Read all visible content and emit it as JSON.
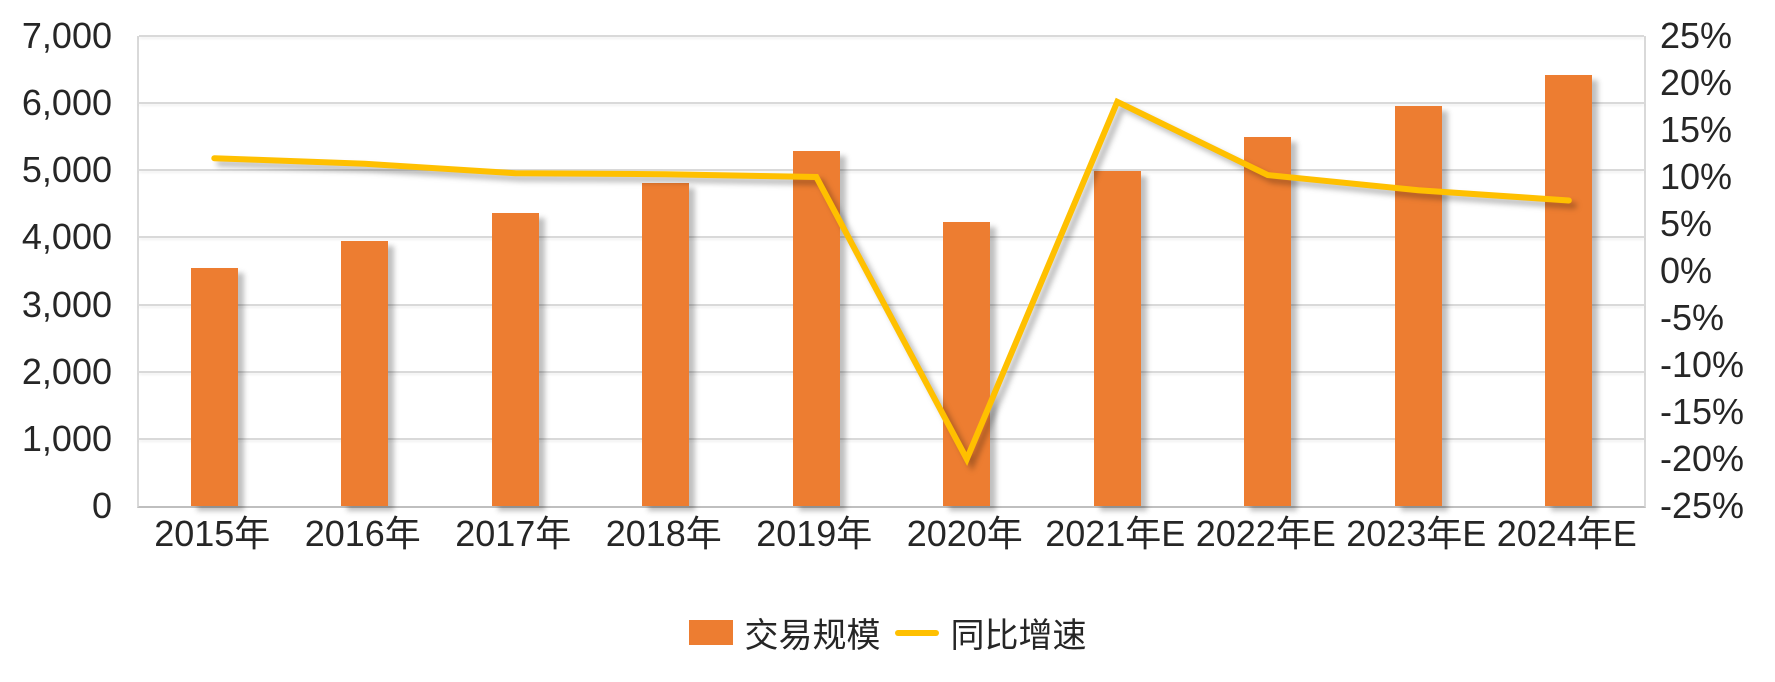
{
  "chart_data": {
    "type": "bar",
    "subtype": "combo-bar-line",
    "categories": [
      "2015年",
      "2016年",
      "2017年",
      "2018年",
      "2019年",
      "2020年",
      "2021年E",
      "2022年E",
      "2023年E",
      "2024年E"
    ],
    "series": [
      {
        "name": "交易规模",
        "type": "bar",
        "axis": "left",
        "color": "#ED7D31",
        "values": [
          3545,
          3950,
          4360,
          4810,
          5290,
          4230,
          4990,
          5500,
          5965,
          6425
        ]
      },
      {
        "name": "同比增速",
        "type": "line",
        "axis": "right",
        "color": "#FFC000",
        "values_percent": [
          12.0,
          11.4,
          10.4,
          10.3,
          10.0,
          -20.0,
          18.0,
          10.2,
          8.6,
          7.5
        ]
      }
    ],
    "left_axis": {
      "min": 0,
      "max": 7000,
      "step": 1000,
      "tick_labels": [
        "0",
        "1,000",
        "2,000",
        "3,000",
        "4,000",
        "5,000",
        "6,000",
        "7,000"
      ]
    },
    "right_axis": {
      "min": -25,
      "max": 25,
      "step": 5,
      "tick_labels_top_down": [
        "25%",
        "20%",
        "15%",
        "10%",
        "5%",
        "0%",
        "-5%",
        "-10%",
        "-15%",
        "-20%",
        "-25%"
      ]
    },
    "grid": true,
    "legend_position": "bottom",
    "title": "",
    "xlabel": "",
    "ylabel": ""
  },
  "legend": {
    "bar_label": "交易规模",
    "line_label": "同比增速"
  },
  "colors": {
    "bar": "#ED7D31",
    "line": "#FFC000",
    "gridline": "#D9D9D9",
    "axis_line": "#BFBFBF",
    "text": "#262626",
    "background": "#FFFFFF"
  }
}
